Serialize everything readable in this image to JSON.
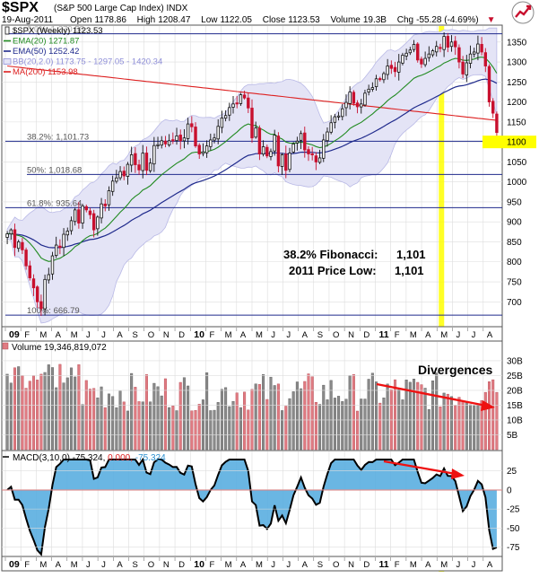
{
  "header": {
    "ticker": "$SPX",
    "company": "(S&P 500 Large Cap Index) INDX",
    "date": "19-Aug-2011",
    "open_label": "Open",
    "open": "1178.86",
    "high_label": "High",
    "high": "1208.47",
    "low_label": "Low",
    "low": "1122.05",
    "close_label": "Close",
    "close": "1123.53",
    "volume_label": "Volume",
    "volume": "19.3B",
    "change_label": "Chg",
    "change": "-55.28 (-4.69%)",
    "change_arrow": "▼"
  },
  "legend": [
    {
      "text": "$SPX (Weekly) 1123.53",
      "color": "#222222",
      "swatch": "candle"
    },
    {
      "text": "EMA(20) 1271.87",
      "color": "#228b22",
      "swatch": "line"
    },
    {
      "text": "EMA(50) 1252.42",
      "color": "#1f2a8c",
      "swatch": "line"
    },
    {
      "text": "BB(20,2.0) 1173.75 - 1297.05 - 1420.34",
      "color": "#8e8ed8",
      "swatch": "band"
    },
    {
      "text": "MA(200) 1153.98",
      "color": "#dd2020",
      "swatch": "line"
    }
  ],
  "fib_labels": [
    {
      "text": "0.0%: 1,370.58",
      "value": 1370.58,
      "color": "#aaaaaa"
    },
    {
      "text": "38.2%: 1,101.73",
      "value": 1101.73,
      "color": "#555555"
    },
    {
      "text": "50%: 1,018.68",
      "value": 1018.68,
      "color": "#555555"
    },
    {
      "text": "61.8%: 935.64",
      "value": 935.64,
      "color": "#555555"
    },
    {
      "text": "100%: 666.79",
      "value": 666.79,
      "color": "#555555"
    }
  ],
  "annotation": {
    "line1_label": "38.2%  Fibonacci:",
    "line1_value": "1,101",
    "line2_label": "2011 Price Low:",
    "line2_value": "1,101"
  },
  "price_axis": [
    1350,
    1300,
    1250,
    1200,
    1150,
    1100,
    1050,
    1000,
    950,
    900,
    850,
    800,
    750,
    700
  ],
  "price_highlight": "1100",
  "volume_panel": {
    "label": "Volume 19,346,819,072",
    "divergence_label": "Divergences",
    "axis": [
      "30B",
      "25B",
      "20B",
      "15B",
      "10B",
      "5B"
    ]
  },
  "macd_panel": {
    "label_prefix": "MACD(3,10,0)",
    "macd_value": "-75.324",
    "signal_value": "0.000",
    "hist_value": "-75.324",
    "axis": [
      "25",
      "0",
      "-25",
      "-50",
      "-75"
    ]
  },
  "x_axis": [
    {
      "label": "09",
      "bold": true
    },
    {
      "label": "F"
    },
    {
      "label": "M"
    },
    {
      "label": "A"
    },
    {
      "label": "M"
    },
    {
      "label": "J"
    },
    {
      "label": "J"
    },
    {
      "label": "A"
    },
    {
      "label": "S"
    },
    {
      "label": "O"
    },
    {
      "label": "N"
    },
    {
      "label": "D"
    },
    {
      "label": "10",
      "bold": true
    },
    {
      "label": "F"
    },
    {
      "label": "M"
    },
    {
      "label": "A"
    },
    {
      "label": "M"
    },
    {
      "label": "J"
    },
    {
      "label": "J"
    },
    {
      "label": "A"
    },
    {
      "label": "S"
    },
    {
      "label": "O"
    },
    {
      "label": "N"
    },
    {
      "label": "D"
    },
    {
      "label": "11",
      "bold": true
    },
    {
      "label": "F"
    },
    {
      "label": "M"
    },
    {
      "label": "A"
    },
    {
      "label": "M"
    },
    {
      "label": "J"
    },
    {
      "label": "J"
    },
    {
      "label": "A"
    }
  ],
  "colors": {
    "up": "#111111",
    "down": "#c8102e",
    "vol_up": "#8a8a8a",
    "vol_down": "#e07b82",
    "macd_pos": "#2a8fd0",
    "macd_neg": "#2a8fd0",
    "highlight": "#ffff00",
    "arrow": "#ee1111",
    "fib_line": "#1f2a8c",
    "grid": "#dddddd"
  },
  "chart_data": {
    "type": "line",
    "title": "$SPX (S&P 500 Large Cap Index) INDX",
    "timeframe": "weekly",
    "x_start": "2009-01-02",
    "x_end": "2011-08-19",
    "ylim": [
      640,
      1390
    ],
    "grid": true,
    "legend_position": "top-left",
    "series": [
      {
        "name": "$SPX (Weekly)",
        "kind": "close",
        "values": [
          870,
          880,
          836,
          850,
          830,
          790,
          760,
          735,
          700,
          683,
          756,
          768,
          815,
          842,
          836,
          869,
          877,
          903,
          930,
          897,
          940,
          930,
          918,
          880,
          912,
          945,
          940,
          978,
          1002,
          1010,
          1026,
          1015,
          1044,
          1068,
          1043,
          1030,
          1072,
          1029,
          1047,
          1091,
          1093,
          1103,
          1095,
          1103,
          1105,
          1115,
          1103,
          1110,
          1145,
          1138,
          1090,
          1070,
          1075,
          1090,
          1105,
          1110,
          1139,
          1160,
          1166,
          1186,
          1195,
          1197,
          1218,
          1210,
          1185,
          1110,
          1135,
          1070,
          1088,
          1065,
          1076,
          1117,
          1040,
          1068,
          1029,
          1072,
          1095,
          1102,
          1121,
          1080,
          1070,
          1068,
          1050,
          1060,
          1105,
          1125,
          1148,
          1163,
          1165,
          1183,
          1199,
          1225,
          1197,
          1188,
          1195,
          1222,
          1232,
          1236,
          1258,
          1256,
          1271,
          1290,
          1284,
          1276,
          1300,
          1317,
          1322,
          1330,
          1344,
          1305,
          1295,
          1309,
          1320,
          1328,
          1339,
          1334,
          1364,
          1337,
          1350,
          1338,
          1300,
          1270,
          1298,
          1320,
          1325,
          1345,
          1325,
          1290,
          1200,
          1172,
          1123.53
        ]
      },
      {
        "name": "EMA(20)",
        "last": 1271.87
      },
      {
        "name": "EMA(50)",
        "last": 1252.42
      },
      {
        "name": "BB(20,2.0)",
        "lower": 1173.75,
        "middle": 1297.05,
        "upper": 1420.34
      },
      {
        "name": "MA(200)",
        "last": 1153.98
      }
    ],
    "fibonacci": [
      {
        "level": "0.0%",
        "value": 1370.58
      },
      {
        "level": "38.2%",
        "value": 1101.73
      },
      {
        "level": "50%",
        "value": 1018.68
      },
      {
        "level": "61.8%",
        "value": 935.64
      },
      {
        "level": "100%",
        "value": 666.79
      }
    ],
    "volume": {
      "ylim": [
        0,
        33
      ],
      "last": 19.35
    },
    "macd": {
      "ylim": [
        -85,
        40
      ],
      "last": -75.324
    }
  }
}
